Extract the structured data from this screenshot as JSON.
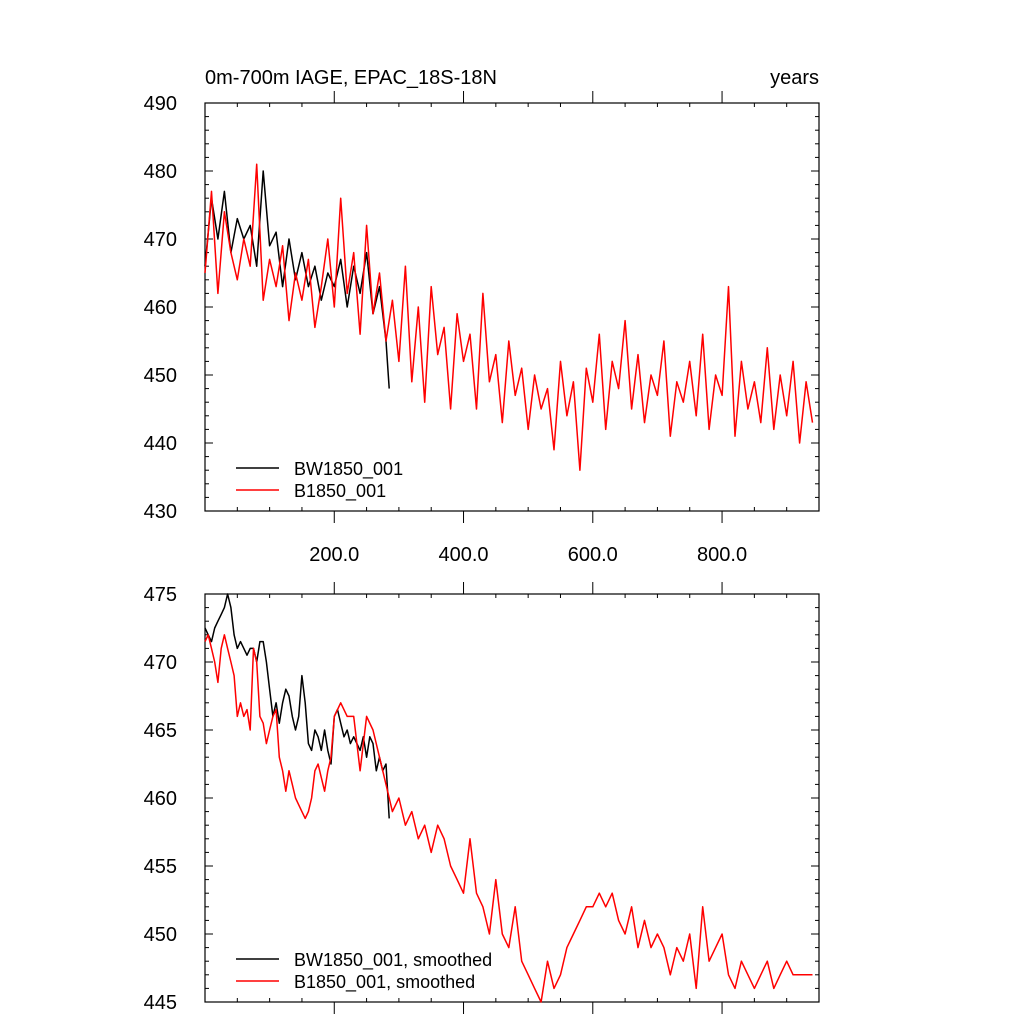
{
  "chart_data": [
    {
      "type": "line",
      "title_left": "0m-700m IAGE, EPAC_18S-18N",
      "title_right": "years",
      "xlim": [
        0,
        950
      ],
      "ylim": [
        430,
        490
      ],
      "x_ticks": [
        200,
        400,
        600,
        800
      ],
      "x_tick_labels": [
        "200.0",
        "400.0",
        "600.0",
        "800.0"
      ],
      "y_ticks": [
        430,
        440,
        450,
        460,
        470,
        480,
        490
      ],
      "y_tick_labels": [
        "430",
        "440",
        "450",
        "460",
        "470",
        "480",
        "490"
      ],
      "legend_position": "bottom-left",
      "series": [
        {
          "name": "BW1850_001",
          "color": "#000000",
          "x": [
            0,
            10,
            20,
            30,
            40,
            50,
            60,
            70,
            80,
            90,
            100,
            110,
            120,
            130,
            140,
            150,
            160,
            170,
            180,
            190,
            200,
            210,
            220,
            230,
            240,
            250,
            260,
            270,
            280,
            285
          ],
          "y": [
            466,
            476,
            470,
            477,
            468,
            473,
            470,
            472,
            466,
            480,
            469,
            471,
            463,
            470,
            464,
            468,
            463,
            466,
            461,
            465,
            463,
            467,
            460,
            466,
            462,
            468,
            459,
            463,
            455,
            448
          ]
        },
        {
          "name": "B1850_001",
          "color": "#ff0000",
          "x": [
            0,
            10,
            20,
            30,
            40,
            50,
            60,
            70,
            80,
            90,
            100,
            110,
            120,
            130,
            140,
            150,
            160,
            170,
            180,
            190,
            200,
            210,
            220,
            230,
            240,
            250,
            260,
            270,
            280,
            290,
            300,
            310,
            320,
            330,
            340,
            350,
            360,
            370,
            380,
            390,
            400,
            410,
            420,
            430,
            440,
            450,
            460,
            470,
            480,
            490,
            500,
            510,
            520,
            530,
            540,
            550,
            560,
            570,
            580,
            590,
            600,
            610,
            620,
            630,
            640,
            650,
            660,
            670,
            680,
            690,
            700,
            710,
            720,
            730,
            740,
            750,
            760,
            770,
            780,
            790,
            800,
            810,
            820,
            830,
            840,
            850,
            860,
            870,
            880,
            890,
            900,
            910,
            920,
            930,
            940
          ],
          "y": [
            465,
            477,
            462,
            474,
            468,
            464,
            470,
            466,
            481,
            461,
            467,
            463,
            469,
            458,
            465,
            461,
            467,
            457,
            463,
            470,
            460,
            476,
            462,
            468,
            456,
            472,
            459,
            465,
            455,
            461,
            452,
            466,
            449,
            460,
            446,
            463,
            453,
            457,
            445,
            459,
            452,
            456,
            445,
            462,
            449,
            453,
            443,
            455,
            447,
            451,
            442,
            450,
            445,
            448,
            439,
            452,
            444,
            449,
            436,
            451,
            446,
            456,
            442,
            452,
            448,
            458,
            445,
            453,
            443,
            450,
            447,
            455,
            441,
            449,
            446,
            452,
            444,
            456,
            442,
            450,
            447,
            463,
            441,
            452,
            445,
            449,
            443,
            454,
            442,
            450,
            444,
            452,
            440,
            449,
            443
          ]
        }
      ]
    },
    {
      "type": "line",
      "title_left": "",
      "title_right": "",
      "xlim": [
        0,
        950
      ],
      "ylim": [
        445,
        475
      ],
      "x_ticks": [
        200,
        400,
        600,
        800
      ],
      "x_tick_labels": [
        "",
        "",
        "",
        ""
      ],
      "y_ticks": [
        445,
        450,
        455,
        460,
        465,
        470,
        475
      ],
      "y_tick_labels": [
        "445",
        "450",
        "455",
        "460",
        "465",
        "470",
        "475"
      ],
      "legend_position": "bottom-left",
      "series": [
        {
          "name": "BW1850_001, smoothed",
          "color": "#000000",
          "x": [
            0,
            5,
            10,
            15,
            20,
            25,
            30,
            35,
            40,
            45,
            50,
            55,
            60,
            65,
            70,
            75,
            80,
            85,
            90,
            95,
            100,
            105,
            110,
            115,
            120,
            125,
            130,
            135,
            140,
            145,
            150,
            155,
            160,
            165,
            170,
            175,
            180,
            185,
            190,
            195,
            200,
            205,
            210,
            215,
            220,
            225,
            230,
            235,
            240,
            245,
            250,
            255,
            260,
            265,
            270,
            275,
            280,
            285
          ],
          "y": [
            472.5,
            472,
            471.5,
            472.5,
            473,
            473.5,
            474,
            475,
            474,
            472,
            471,
            471.5,
            471,
            470.5,
            471,
            471,
            470,
            471.5,
            471.5,
            470,
            468,
            466,
            467,
            465.5,
            467,
            468,
            467.5,
            466,
            465,
            466,
            469,
            467,
            464,
            463.5,
            465,
            464.5,
            463.5,
            465,
            463.5,
            462.5,
            466,
            466.5,
            465.5,
            464.5,
            465,
            464,
            464.5,
            464,
            463.5,
            464.5,
            463,
            464.5,
            464,
            462,
            463,
            462,
            462.5,
            458.5
          ]
        },
        {
          "name": "B1850_001, smoothed",
          "color": "#ff0000",
          "x": [
            0,
            5,
            10,
            15,
            20,
            25,
            30,
            35,
            40,
            45,
            50,
            55,
            60,
            65,
            70,
            75,
            80,
            85,
            90,
            95,
            100,
            105,
            110,
            115,
            120,
            125,
            130,
            135,
            140,
            145,
            150,
            155,
            160,
            165,
            170,
            175,
            180,
            185,
            190,
            195,
            200,
            210,
            220,
            230,
            240,
            250,
            260,
            270,
            280,
            290,
            300,
            310,
            320,
            330,
            340,
            350,
            360,
            370,
            380,
            390,
            400,
            410,
            420,
            430,
            440,
            450,
            460,
            470,
            480,
            490,
            500,
            510,
            520,
            530,
            540,
            550,
            560,
            570,
            580,
            590,
            600,
            610,
            620,
            630,
            640,
            650,
            660,
            670,
            680,
            690,
            700,
            710,
            720,
            730,
            740,
            750,
            760,
            770,
            780,
            790,
            800,
            810,
            820,
            830,
            840,
            850,
            860,
            870,
            880,
            890,
            900,
            910,
            920,
            930,
            940
          ],
          "y": [
            471.5,
            472,
            471,
            470,
            468.5,
            471,
            472,
            471,
            470,
            469,
            466,
            467,
            466,
            466.5,
            465,
            471,
            470,
            466,
            465.5,
            464,
            465,
            466,
            466.5,
            463,
            462,
            460.5,
            462,
            461,
            460,
            459.5,
            459,
            458.5,
            459,
            460,
            462,
            462.5,
            461.5,
            460.5,
            462,
            463,
            466,
            467,
            466,
            466,
            462,
            466,
            465,
            463,
            461,
            459,
            460,
            458,
            459,
            457,
            458,
            456,
            458,
            457,
            455,
            454,
            453,
            457,
            453,
            452,
            450,
            454,
            450,
            449,
            452,
            448,
            447,
            446,
            445,
            448,
            446,
            447,
            449,
            450,
            451,
            452,
            452,
            453,
            452,
            453,
            451,
            450,
            452,
            449,
            451,
            449,
            450,
            449,
            447,
            449,
            448,
            450,
            446,
            452,
            448,
            449,
            450,
            447,
            446,
            448,
            447,
            446,
            447,
            448,
            446,
            447,
            448,
            447,
            447,
            447,
            447
          ]
        }
      ]
    }
  ]
}
